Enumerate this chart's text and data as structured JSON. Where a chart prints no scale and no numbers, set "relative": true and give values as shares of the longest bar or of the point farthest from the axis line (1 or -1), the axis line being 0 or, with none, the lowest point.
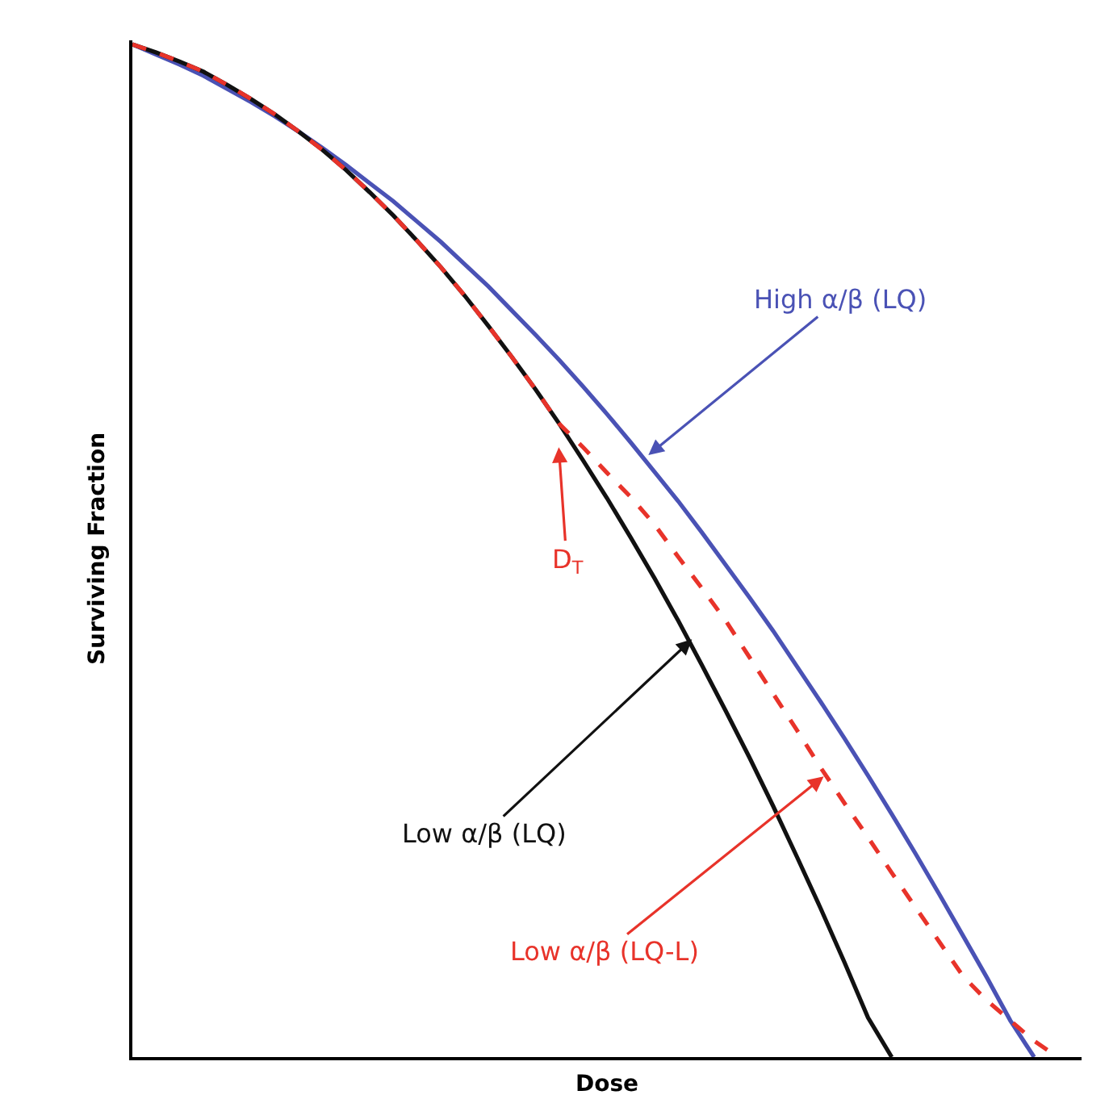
{
  "chart_data": {
    "type": "line",
    "relative": true,
    "xlabel": "Dose",
    "ylabel": "Surviving Fraction",
    "categories": [
      null,
      null,
      null,
      null,
      null,
      null,
      null,
      null,
      null,
      null,
      null,
      null,
      null,
      null,
      null,
      null,
      null,
      null,
      null,
      null,
      null,
      null,
      null,
      null,
      null,
      null,
      null,
      null,
      null,
      null,
      null,
      null,
      null,
      null,
      null,
      null,
      null,
      null,
      null,
      null,
      null
    ],
    "series": [
      {
        "color": "#4a52b5",
        "line_style": "solid",
        "values": [
          1,
          0.99,
          0.98,
          0.969,
          0.956,
          0.943,
          0.929,
          0.914,
          0.898,
          0.881,
          0.863,
          0.845,
          0.825,
          0.805,
          0.783,
          0.761,
          0.737,
          0.713,
          0.688,
          0.662,
          0.635,
          0.607,
          0.578,
          0.549,
          0.518,
          0.486,
          0.454,
          0.421,
          0.386,
          0.351,
          0.315,
          0.278,
          0.24,
          0.201,
          0.161,
          0.12,
          0.079,
          0.036,
          0,
          null,
          null
        ]
      },
      {
        "color": "#111111",
        "line_style": "solid",
        "values": [
          1,
          0.992,
          0.983,
          0.973,
          0.96,
          0.946,
          0.931,
          0.914,
          0.896,
          0.876,
          0.854,
          0.831,
          0.806,
          0.78,
          0.752,
          0.722,
          0.691,
          0.659,
          0.625,
          0.589,
          0.552,
          0.513,
          0.473,
          0.431,
          0.387,
          0.342,
          0.296,
          0.248,
          0.198,
          0.147,
          0.094,
          0.039,
          0,
          null,
          null,
          null,
          null,
          null,
          null,
          null,
          null
        ]
      },
      {
        "color": "#e8332a",
        "line_style": "dashed",
        "values": [
          1,
          0.992,
          0.983,
          0.973,
          0.96,
          0.946,
          0.931,
          0.914,
          0.896,
          0.876,
          0.854,
          0.831,
          0.806,
          0.78,
          0.752,
          0.722,
          0.691,
          0.659,
          0.625,
          0.602,
          0.577,
          0.553,
          0.526,
          0.494,
          0.463,
          0.431,
          0.395,
          0.359,
          0.323,
          0.286,
          0.251,
          0.217,
          0.182,
          0.148,
          0.114,
          0.08,
          0.056,
          0.036,
          0.016,
          0,
          null
        ]
      }
    ],
    "annotations": [
      "High α/β (LQ)",
      "D$_{T}$",
      "Low α/β (LQ)",
      "Low α/β (LQ-L)"
    ]
  }
}
